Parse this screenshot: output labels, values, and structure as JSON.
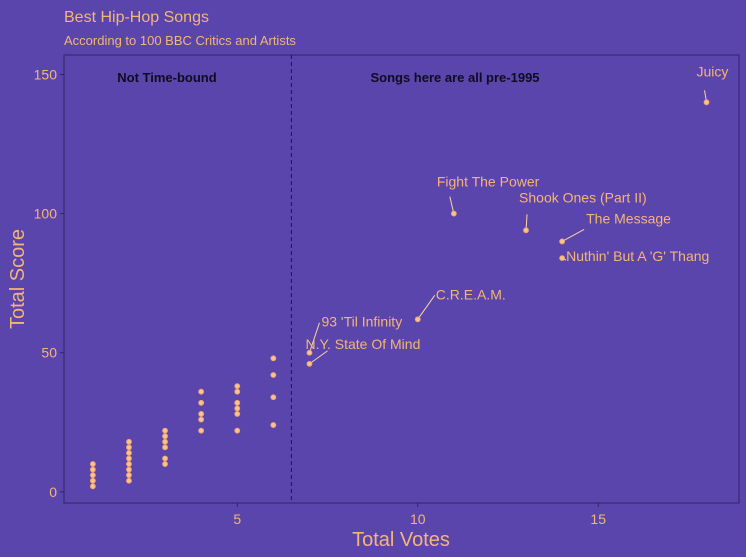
{
  "colors": {
    "background": "#5a45ac",
    "panel_border": "#2e2566",
    "accent": "#f5b574",
    "point_stroke": "#f2a66a",
    "point_fill": "#f7c38e",
    "leader": "#fbd3a4",
    "divider": "#1c1642",
    "region_text": "#0e0c20"
  },
  "chart_data": {
    "type": "scatter",
    "title": "Best Hip-Hop Songs",
    "subtitle": "According to 100 BBC Critics and Artists",
    "xlabel": "Total Votes",
    "ylabel": "Total Score",
    "xlim": [
      0.2,
      18.9
    ],
    "ylim": [
      -4,
      157
    ],
    "xticks": [
      5,
      10,
      15
    ],
    "yticks": [
      0,
      50,
      100,
      150
    ],
    "grid": false,
    "divider_x": 6.5,
    "region_labels": [
      "Not Time-bound",
      "Songs here are all pre-1995"
    ],
    "points": [
      {
        "x": 1,
        "y": 2
      },
      {
        "x": 1,
        "y": 4
      },
      {
        "x": 1,
        "y": 6
      },
      {
        "x": 1,
        "y": 8
      },
      {
        "x": 1,
        "y": 10
      },
      {
        "x": 2,
        "y": 4
      },
      {
        "x": 2,
        "y": 6
      },
      {
        "x": 2,
        "y": 8
      },
      {
        "x": 2,
        "y": 10
      },
      {
        "x": 2,
        "y": 12
      },
      {
        "x": 2,
        "y": 14
      },
      {
        "x": 2,
        "y": 16
      },
      {
        "x": 2,
        "y": 18
      },
      {
        "x": 3,
        "y": 10
      },
      {
        "x": 3,
        "y": 12
      },
      {
        "x": 3,
        "y": 16
      },
      {
        "x": 3,
        "y": 18
      },
      {
        "x": 3,
        "y": 20
      },
      {
        "x": 3,
        "y": 22
      },
      {
        "x": 4,
        "y": 22
      },
      {
        "x": 4,
        "y": 26
      },
      {
        "x": 4,
        "y": 28
      },
      {
        "x": 4,
        "y": 32
      },
      {
        "x": 4,
        "y": 36
      },
      {
        "x": 5,
        "y": 22
      },
      {
        "x": 5,
        "y": 28
      },
      {
        "x": 5,
        "y": 30
      },
      {
        "x": 5,
        "y": 32
      },
      {
        "x": 5,
        "y": 36
      },
      {
        "x": 5,
        "y": 38
      },
      {
        "x": 6,
        "y": 24
      },
      {
        "x": 6,
        "y": 34
      },
      {
        "x": 6,
        "y": 42
      },
      {
        "x": 6,
        "y": 48
      },
      {
        "x": 7,
        "y": 46,
        "label": "N.Y. State Of Mind"
      },
      {
        "x": 7,
        "y": 50,
        "label": "93 'Til Infinity"
      },
      {
        "x": 10,
        "y": 62,
        "label": "C.R.E.A.M."
      },
      {
        "x": 11,
        "y": 100,
        "label": "Fight The Power"
      },
      {
        "x": 13,
        "y": 94,
        "label": "Shook Ones (Part II)"
      },
      {
        "x": 14,
        "y": 90,
        "label": "The Message"
      },
      {
        "x": 14,
        "y": 84,
        "label": "Nuthin' But A 'G' Thang"
      },
      {
        "x": 18,
        "y": 140,
        "label": "Juicy"
      }
    ]
  }
}
